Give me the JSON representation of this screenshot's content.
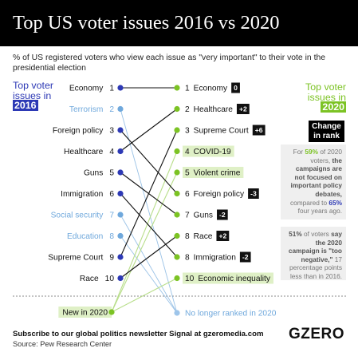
{
  "header": {
    "title": "Top US voter issues 2016 vs 2020"
  },
  "subtitle": "% of US registered voters who view each issue as \"very important\" to their vote in the presidential election",
  "left_heading": {
    "text": "Top voter issues in",
    "year": "2016"
  },
  "right_heading": {
    "text": "Top voter issues in",
    "year": "2020"
  },
  "change_label": "Change in rank",
  "callout1": {
    "p1": "For",
    "pct1": "59%",
    "p2": "of 2020 voters,",
    "bold": "the campaigns are not focused on important policy debates,",
    "p3": "compared to",
    "pct2": "65%",
    "p4": "four years ago."
  },
  "callout2": {
    "pct": "51%",
    "p1": "of voters",
    "bold": "say the 2020 campaign is \"too negative,\"",
    "p2": "17 percentage points less than in 2016."
  },
  "chart_data": {
    "type": "slope",
    "left_year": "2016",
    "right_year": "2020",
    "left": [
      {
        "rank": 1,
        "label": "Economy",
        "dropped": false
      },
      {
        "rank": 2,
        "label": "Terrorism",
        "dropped": true
      },
      {
        "rank": 3,
        "label": "Foreign policy",
        "dropped": false
      },
      {
        "rank": 4,
        "label": "Healthcare",
        "dropped": false
      },
      {
        "rank": 5,
        "label": "Guns",
        "dropped": false
      },
      {
        "rank": 6,
        "label": "Immigration",
        "dropped": false
      },
      {
        "rank": 7,
        "label": "Social security",
        "dropped": true
      },
      {
        "rank": 8,
        "label": "Education",
        "dropped": true
      },
      {
        "rank": 9,
        "label": "Supreme Court",
        "dropped": false
      },
      {
        "rank": 10,
        "label": "Race",
        "dropped": false
      }
    ],
    "right": [
      {
        "rank": "1",
        "label": "Economy",
        "change": "0",
        "new": false
      },
      {
        "rank": "2",
        "label": "Healthcare",
        "change": "+2",
        "new": false
      },
      {
        "rank": "3",
        "label": "Supreme Court",
        "change": "+6",
        "new": false
      },
      {
        "rank": "4",
        "label": "COVID-19",
        "change": "",
        "new": true
      },
      {
        "rank": "5",
        "label": "Violent crime",
        "change": "",
        "new": true
      },
      {
        "rank": "6",
        "label": "Foreign policy",
        "change": "-3",
        "new": false
      },
      {
        "rank": "7",
        "label": "Guns",
        "change": "-2",
        "new": false
      },
      {
        "rank": "8",
        "label": "Race",
        "change": "+2",
        "new": false
      },
      {
        "rank": "8",
        "label": "Immigration",
        "change": "-2",
        "new": false
      },
      {
        "rank": "10",
        "label": "Economic inequality",
        "change": "",
        "new": true
      }
    ],
    "links": [
      {
        "from": 1,
        "to": 1
      },
      {
        "from": 3,
        "to": 6
      },
      {
        "from": 4,
        "to": 2
      },
      {
        "from": 5,
        "to": 7
      },
      {
        "from": 6,
        "to": 9
      },
      {
        "from": 9,
        "to": 3
      },
      {
        "from": 10,
        "to": 8
      }
    ],
    "new_label": "New in 2020",
    "dropped_label": "No longer ranked in 2020",
    "colors": {
      "left": "#2d39b5",
      "right": "#7cc324",
      "dropped": "#6fa8dc",
      "new_fill": "#dff0c6"
    }
  },
  "footer": {
    "subscribe": "Subscribe to our global politics newsletter Signal at gzeromedia.com",
    "source": "Source: Pew Research Center",
    "logo": "GZERO"
  }
}
